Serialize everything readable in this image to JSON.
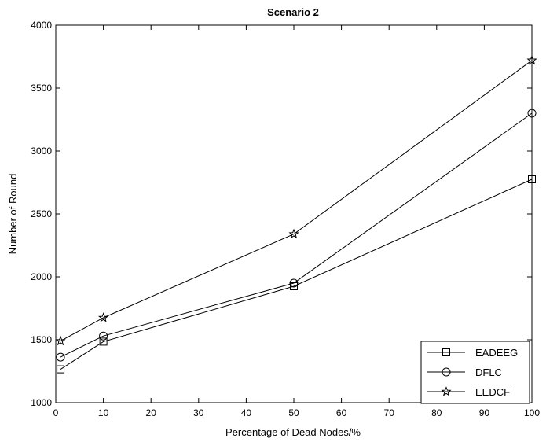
{
  "chart_data": {
    "type": "line",
    "title": "Scenario 2",
    "xlabel": "Percentage of Dead Nodes/%",
    "ylabel": "Number of Round",
    "xlim": [
      0,
      100
    ],
    "ylim": [
      1000,
      4000
    ],
    "xticks": [
      0,
      10,
      20,
      30,
      40,
      50,
      60,
      70,
      80,
      90,
      100
    ],
    "yticks": [
      1000,
      1500,
      2000,
      2500,
      3000,
      3500,
      4000
    ],
    "grid": false,
    "legend_position": "bottom-right",
    "x": [
      1,
      10,
      50,
      100
    ],
    "series": [
      {
        "name": "EADEEG",
        "marker": "square",
        "values": [
          1265,
          1485,
          1925,
          2775
        ]
      },
      {
        "name": "DFLC",
        "marker": "circle",
        "values": [
          1362,
          1530,
          1950,
          3300
        ]
      },
      {
        "name": "EEDCF",
        "marker": "star",
        "values": [
          1490,
          1675,
          2340,
          3720
        ]
      }
    ],
    "line_color": "#000000"
  }
}
